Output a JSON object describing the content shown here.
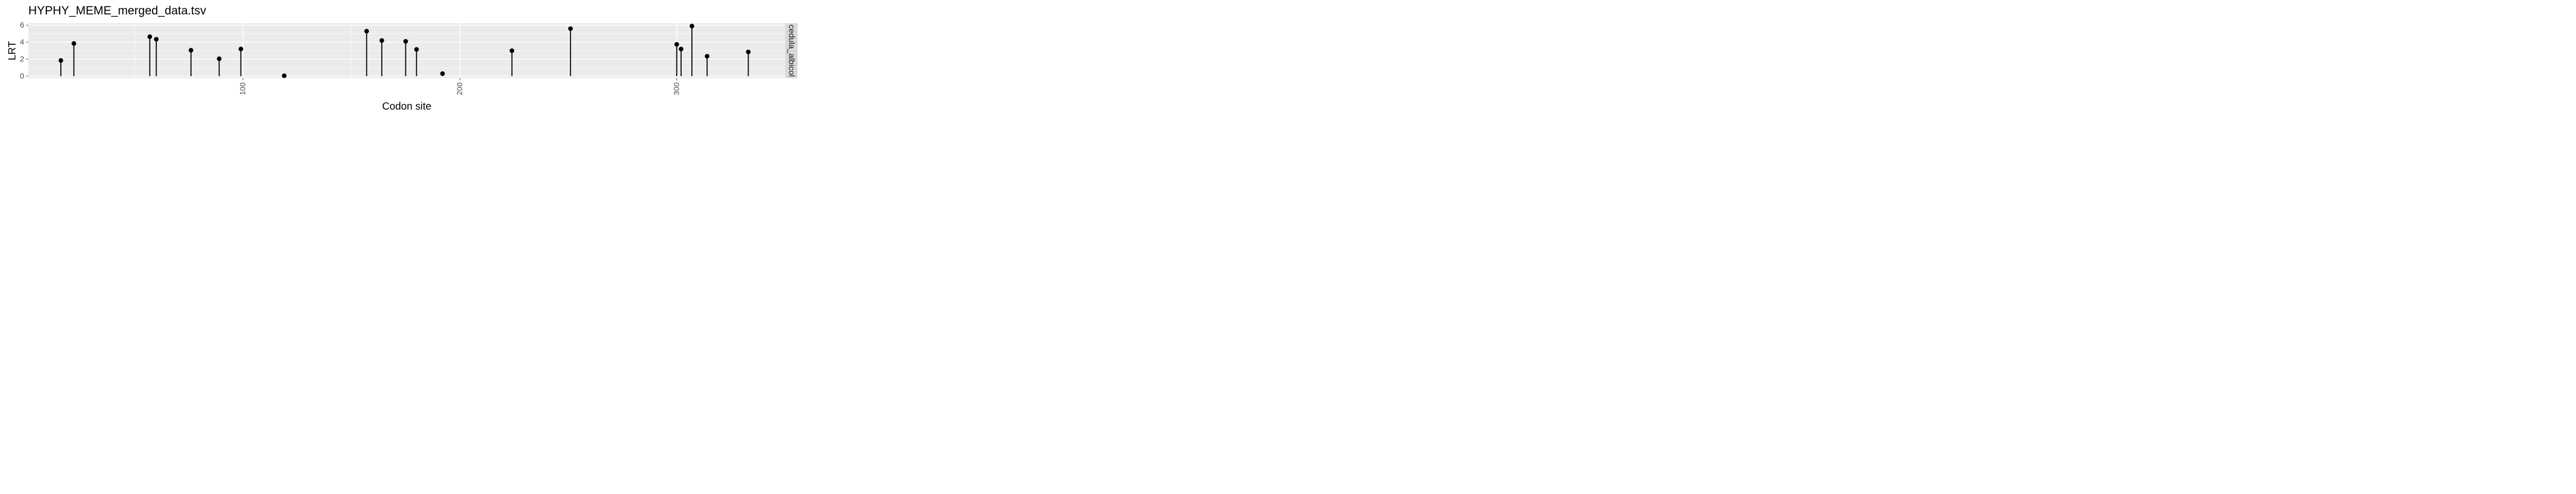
{
  "chart_data": {
    "type": "lollipop",
    "title": "HYPHY_MEME_merged_data.tsv",
    "xlabel": "Codon site",
    "ylabel": "LRT",
    "facet_label": "cedula_albicol",
    "xlim": [
      1,
      350
    ],
    "ylim": [
      0,
      6
    ],
    "x_ticks": [
      100,
      200,
      300
    ],
    "y_ticks": [
      0,
      2,
      4,
      6
    ],
    "grid": true,
    "colors": {
      "panel": "#ebebeb",
      "grid": "#ffffff",
      "strip": "#d9d9d9",
      "mark": "#000000"
    },
    "points": [
      {
        "x": 16,
        "y": 1.85
      },
      {
        "x": 22,
        "y": 3.85
      },
      {
        "x": 57,
        "y": 4.65
      },
      {
        "x": 60,
        "y": 4.35
      },
      {
        "x": 76,
        "y": 3.05
      },
      {
        "x": 89,
        "y": 2.05
      },
      {
        "x": 99,
        "y": 3.2
      },
      {
        "x": 119,
        "y": 0.05
      },
      {
        "x": 157,
        "y": 5.3
      },
      {
        "x": 164,
        "y": 4.2
      },
      {
        "x": 175,
        "y": 4.1
      },
      {
        "x": 180,
        "y": 3.15
      },
      {
        "x": 192,
        "y": 0.3
      },
      {
        "x": 224,
        "y": 3.0
      },
      {
        "x": 251,
        "y": 5.6
      },
      {
        "x": 300,
        "y": 3.75
      },
      {
        "x": 302,
        "y": 3.2
      },
      {
        "x": 307,
        "y": 5.9
      },
      {
        "x": 314,
        "y": 2.35
      },
      {
        "x": 333,
        "y": 2.85
      }
    ]
  }
}
